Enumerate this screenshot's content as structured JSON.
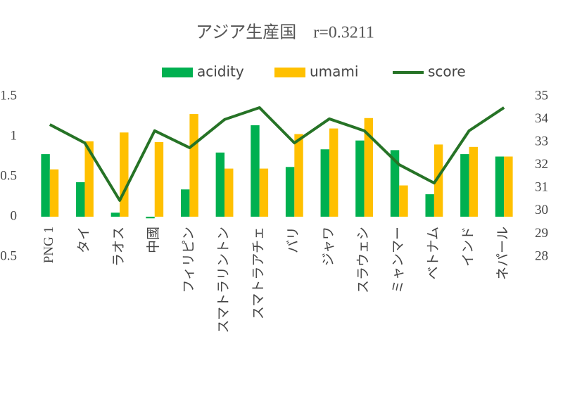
{
  "chart_data": {
    "type": "bar-line",
    "title": "アジア生産国　r=0.3211",
    "categories": [
      "PNG 1",
      "タイ",
      "ラオス",
      "中國",
      "フィリピン",
      "スマトラリントン",
      "スマトラアチェ",
      "バリ",
      "ジャワ",
      "スラウェシ",
      "ミャンマー",
      "ベトナム",
      "インド",
      "ネパール"
    ],
    "series": [
      {
        "name": "acidity",
        "type": "bar",
        "color": "#00b050",
        "values": [
          0.78,
          0.43,
          0.05,
          -0.02,
          0.34,
          0.8,
          1.14,
          0.62,
          0.84,
          0.95,
          0.83,
          0.28,
          0.78,
          0.75
        ]
      },
      {
        "name": "umami",
        "type": "bar",
        "color": "#ffc000",
        "values": [
          0.59,
          0.94,
          1.05,
          0.93,
          1.28,
          0.6,
          0.6,
          1.03,
          1.1,
          1.23,
          0.39,
          0.9,
          0.87,
          0.75
        ]
      },
      {
        "name": "score",
        "type": "line",
        "axis": "y2",
        "color": "#267326",
        "values": [
          33.77,
          32.97,
          30.46,
          33.5,
          32.76,
          33.99,
          34.51,
          32.97,
          34.02,
          33.5,
          32.02,
          31.22,
          33.5,
          34.51
        ]
      }
    ],
    "ylim": [
      -0.5,
      1.5
    ],
    "yticks": [
      -0.5,
      0,
      0.5,
      1,
      1.5
    ],
    "y2lim": [
      28,
      35
    ],
    "y2ticks": [
      28,
      29,
      30,
      31,
      32,
      33,
      34,
      35
    ],
    "grid": false,
    "legend": "top"
  }
}
